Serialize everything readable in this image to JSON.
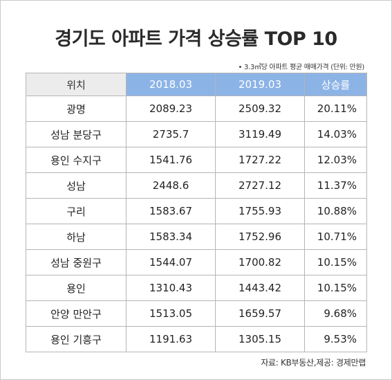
{
  "title": "경기도 아파트 가격 상승률 TOP 10",
  "note": "• 3.3㎡당 아파트 평균 매매가격 (단위: 만원)",
  "columns": [
    "위치",
    "2018.03",
    "2019.03",
    "상승률"
  ],
  "rows": [
    {
      "location": "광명",
      "y2018": "2089.23",
      "y2019": "2509.32",
      "rate": "20.11%"
    },
    {
      "location": "성남 분당구",
      "y2018": "2735.7",
      "y2019": "3119.49",
      "rate": "14.03%"
    },
    {
      "location": "용인 수지구",
      "y2018": "1541.76",
      "y2019": "1727.22",
      "rate": "12.03%"
    },
    {
      "location": "성남",
      "y2018": "2448.6",
      "y2019": "2727.12",
      "rate": "11.37%"
    },
    {
      "location": "구리",
      "y2018": "1583.67",
      "y2019": "1755.93",
      "rate": "10.88%"
    },
    {
      "location": "하남",
      "y2018": "1583.34",
      "y2019": "1752.96",
      "rate": "10.71%"
    },
    {
      "location": "성남 중원구",
      "y2018": "1544.07",
      "y2019": "1700.82",
      "rate": "10.15%"
    },
    {
      "location": "용인",
      "y2018": "1310.43",
      "y2019": "1443.42",
      "rate": "10.15%"
    },
    {
      "location": "안양 만안구",
      "y2018": "1513.05",
      "y2019": "1659.57",
      "rate": "9.68%"
    },
    {
      "location": "용인 기흥구",
      "y2018": "1191.63",
      "y2019": "1305.15",
      "rate": "9.53%"
    }
  ],
  "source": "자료: KB부동산,제공: 경제만랩",
  "colors": {
    "header_blue": "#8cb3e6",
    "header_gray": "#ececec",
    "border": "#b5b5b5"
  }
}
